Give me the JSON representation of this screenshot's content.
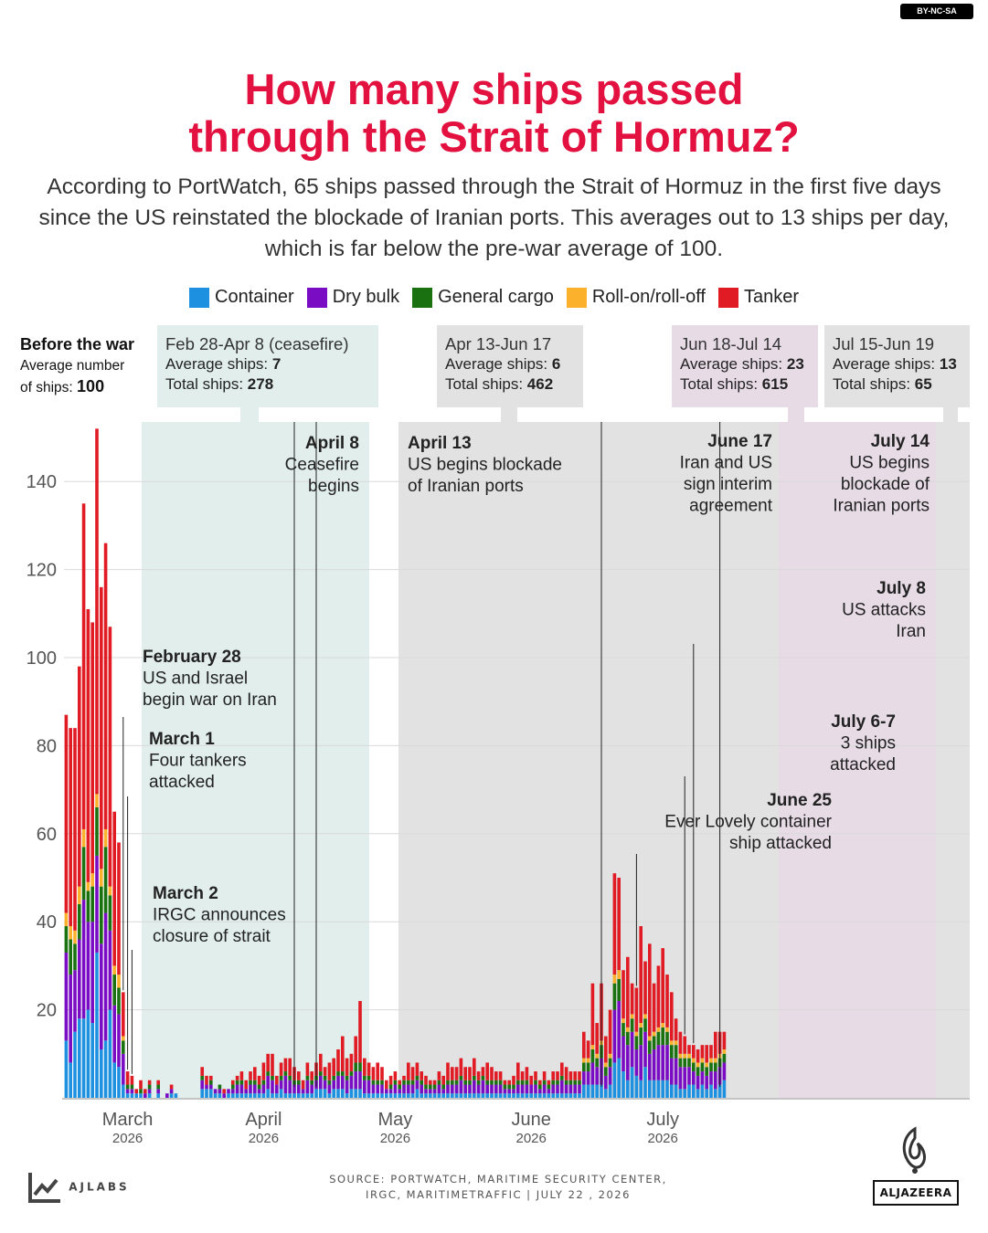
{
  "license": "BY-NC-SA",
  "title_line1": "How many ships passed",
  "title_line2": "through the Strait of Hormuz?",
  "subtitle": "According to PortWatch, 65 ships passed through the Strait of Hormuz in the first five days since the US reinstated the blockade of Iranian ports. This averages out to 13 ships per day, which is far below the pre-war average of 100.",
  "legend": [
    {
      "label": "Container",
      "color": "#1e90e0"
    },
    {
      "label": "Dry bulk",
      "color": "#7a0cc4"
    },
    {
      "label": "General cargo",
      "color": "#19720f"
    },
    {
      "label": "Roll-on/roll-off",
      "color": "#fbb12c"
    },
    {
      "label": "Tanker",
      "color": "#e01b24"
    }
  ],
  "before_war": {
    "title": "Before the war",
    "line1": "Average number",
    "line2": "of ships:",
    "value": "100"
  },
  "periods": [
    {
      "title": "Feb 28-Apr 8 (ceasefire)",
      "avg_label": "Average ships:",
      "avg": "7",
      "total_label": "Total ships:",
      "total": "278",
      "color": "#e2eeeb"
    },
    {
      "title": "Apr 13-Jun 17",
      "avg_label": "Average ships:",
      "avg": "6",
      "total_label": "Total ships:",
      "total": "462",
      "color": "#e2e2e2"
    },
    {
      "title": "Jun 18-Jul 14",
      "avg_label": "Average ships:",
      "avg": "23",
      "total_label": "Total ships:",
      "total": "615",
      "color": "#e7dbe6"
    },
    {
      "title": "Jul 15-Jun 19",
      "avg_label": "Average ships:",
      "avg": "13",
      "total_label": "Total ships:",
      "total": "65",
      "color": "#e2e2e2"
    }
  ],
  "annotations": [
    {
      "head": "February 28",
      "lines": [
        "US and Israel",
        "begin war on Iran"
      ]
    },
    {
      "head": "March 1",
      "lines": [
        "Four tankers",
        "attacked"
      ]
    },
    {
      "head": "March 2",
      "lines": [
        "IRGC announces",
        "closure of strait"
      ]
    },
    {
      "head": "April 8",
      "lines": [
        "Ceasefire",
        "begins"
      ]
    },
    {
      "head": "April 13",
      "lines": [
        "US begins blockade",
        "of Iranian ports"
      ]
    },
    {
      "head": "June 17",
      "lines": [
        "Iran and US",
        "sign interim",
        "agreement"
      ]
    },
    {
      "head": "June 25",
      "lines": [
        "Ever Lovely container",
        "ship attacked"
      ]
    },
    {
      "head": "July 6-7",
      "lines": [
        "3 ships",
        "attacked"
      ]
    },
    {
      "head": "July 8",
      "lines": [
        "US attacks",
        "Iran"
      ]
    },
    {
      "head": "July 14",
      "lines": [
        "US begins",
        "blockade of",
        "Iranian ports"
      ]
    }
  ],
  "source": "SOURCE:  PORTWATCH, MARITIME SECURITY CENTER,",
  "source2": "IRGC, MARITIMETRAFFIC  |  JULY 22 , 2026",
  "brand_left": "AJLABS",
  "brand_right": "ALJAZEERA",
  "chart_data": {
    "type": "bar",
    "stacked": true,
    "x_start": "2026-02-15",
    "x_ticks": [
      {
        "label": "March",
        "year": "2026",
        "date": "2026-03-01"
      },
      {
        "label": "April",
        "year": "2026",
        "date": "2026-04-01"
      },
      {
        "label": "May",
        "year": "2026",
        "date": "2026-05-01"
      },
      {
        "label": "June",
        "year": "2026",
        "date": "2026-06-01"
      },
      {
        "label": "July",
        "year": "2026",
        "date": "2026-07-01"
      }
    ],
    "ylim": [
      0,
      153
    ],
    "yticks": [
      20,
      40,
      60,
      80,
      100,
      120,
      140
    ],
    "grid": true,
    "series_colors": [
      "#1e90e0",
      "#7a0cc4",
      "#19720f",
      "#fbb12c",
      "#e01b24"
    ],
    "series_names": [
      "Container",
      "Dry bulk",
      "General cargo",
      "Roll-on/roll-off",
      "Tanker"
    ],
    "days": [
      [
        13,
        20,
        6,
        3,
        45
      ],
      [
        8,
        20,
        8,
        3,
        45
      ],
      [
        15,
        14,
        6,
        3,
        46
      ],
      [
        18,
        18,
        8,
        4,
        50
      ],
      [
        18,
        27,
        12,
        4,
        74
      ],
      [
        20,
        20,
        7,
        2,
        62
      ],
      [
        17,
        23,
        8,
        3,
        57
      ],
      [
        33,
        22,
        11,
        3,
        83
      ],
      [
        11,
        24,
        13,
        4,
        64
      ],
      [
        13,
        29,
        15,
        4,
        65
      ],
      [
        20,
        18,
        8,
        2,
        59
      ],
      [
        8,
        13,
        7,
        2,
        35
      ],
      [
        7,
        12,
        6,
        3,
        30
      ],
      [
        3,
        7,
        3,
        1,
        10
      ],
      [
        1,
        1,
        1,
        0,
        3
      ],
      [
        1,
        1,
        1,
        0,
        2
      ],
      [
        1,
        0,
        0,
        0,
        1
      ],
      [
        1,
        0,
        1,
        0,
        2
      ],
      [
        0,
        1,
        0,
        0,
        1
      ],
      [
        1,
        1,
        1,
        0,
        1
      ],
      [
        0,
        0,
        0,
        0,
        0
      ],
      [
        1,
        1,
        1,
        0,
        1
      ],
      [
        0,
        0,
        0,
        0,
        0
      ],
      [
        0,
        1,
        0,
        0,
        0
      ],
      [
        1,
        1,
        0,
        0,
        1
      ],
      [
        1,
        0,
        0,
        0,
        0
      ],
      [
        0,
        0,
        0,
        0,
        0
      ],
      [
        0,
        0,
        0,
        0,
        0
      ],
      [
        0,
        0,
        0,
        0,
        0
      ],
      [
        0,
        0,
        0,
        0,
        0
      ],
      [
        0,
        0,
        0,
        0,
        0
      ],
      [
        2,
        2,
        1,
        0,
        2
      ],
      [
        2,
        1,
        0,
        0,
        2
      ],
      [
        2,
        1,
        1,
        0,
        1
      ],
      [
        1,
        1,
        0,
        0,
        0
      ],
      [
        1,
        1,
        1,
        0,
        0
      ],
      [
        0,
        1,
        0,
        0,
        1
      ],
      [
        1,
        1,
        0,
        0,
        0
      ],
      [
        1,
        1,
        1,
        0,
        1
      ],
      [
        1,
        2,
        1,
        0,
        1
      ],
      [
        1,
        2,
        1,
        0,
        2
      ],
      [
        1,
        1,
        0,
        0,
        2
      ],
      [
        1,
        2,
        1,
        0,
        2
      ],
      [
        1,
        2,
        1,
        0,
        3
      ],
      [
        1,
        1,
        1,
        0,
        2
      ],
      [
        1,
        2,
        1,
        0,
        4
      ],
      [
        2,
        3,
        1,
        0,
        4
      ],
      [
        1,
        3,
        1,
        0,
        5
      ],
      [
        1,
        2,
        0,
        0,
        2
      ],
      [
        2,
        2,
        1,
        0,
        3
      ],
      [
        1,
        4,
        1,
        0,
        3
      ],
      [
        1,
        3,
        1,
        0,
        4
      ],
      [
        1,
        2,
        1,
        0,
        3
      ],
      [
        1,
        2,
        1,
        0,
        2
      ],
      [
        1,
        1,
        0,
        0,
        2
      ],
      [
        1,
        3,
        1,
        0,
        3
      ],
      [
        1,
        2,
        1,
        0,
        2
      ],
      [
        2,
        2,
        1,
        0,
        3
      ],
      [
        2,
        3,
        1,
        0,
        4
      ],
      [
        2,
        2,
        1,
        0,
        2
      ],
      [
        1,
        2,
        1,
        0,
        4
      ],
      [
        2,
        2,
        1,
        0,
        4
      ],
      [
        2,
        3,
        1,
        0,
        5
      ],
      [
        2,
        3,
        1,
        0,
        8
      ],
      [
        1,
        3,
        1,
        0,
        4
      ],
      [
        2,
        3,
        1,
        0,
        4
      ],
      [
        2,
        4,
        2,
        0,
        6
      ],
      [
        2,
        4,
        2,
        0,
        14
      ],
      [
        1,
        3,
        1,
        0,
        4
      ],
      [
        1,
        3,
        1,
        0,
        3
      ],
      [
        1,
        2,
        1,
        0,
        3
      ],
      [
        1,
        2,
        1,
        0,
        4
      ],
      [
        1,
        2,
        1,
        0,
        3
      ],
      [
        1,
        1,
        0,
        0,
        2
      ],
      [
        1,
        1,
        1,
        0,
        2
      ],
      [
        1,
        2,
        1,
        0,
        2
      ],
      [
        1,
        1,
        1,
        0,
        1
      ],
      [
        1,
        2,
        1,
        0,
        1
      ],
      [
        1,
        2,
        1,
        0,
        4
      ],
      [
        1,
        2,
        1,
        0,
        3
      ],
      [
        2,
        2,
        1,
        0,
        3
      ],
      [
        1,
        2,
        1,
        0,
        2
      ],
      [
        1,
        1,
        1,
        0,
        2
      ],
      [
        1,
        1,
        1,
        0,
        1
      ],
      [
        1,
        1,
        1,
        0,
        1
      ],
      [
        1,
        2,
        1,
        0,
        2
      ],
      [
        1,
        1,
        1,
        0,
        2
      ],
      [
        1,
        2,
        1,
        0,
        4
      ],
      [
        1,
        2,
        1,
        0,
        3
      ],
      [
        1,
        2,
        1,
        0,
        3
      ],
      [
        1,
        3,
        1,
        0,
        4
      ],
      [
        1,
        2,
        1,
        0,
        3
      ],
      [
        1,
        2,
        1,
        0,
        3
      ],
      [
        1,
        3,
        1,
        0,
        4
      ],
      [
        1,
        2,
        1,
        0,
        2
      ],
      [
        1,
        3,
        1,
        0,
        2
      ],
      [
        1,
        2,
        1,
        0,
        4
      ],
      [
        1,
        2,
        1,
        0,
        3
      ],
      [
        1,
        2,
        1,
        0,
        2
      ],
      [
        1,
        2,
        1,
        0,
        2
      ],
      [
        1,
        1,
        1,
        0,
        1
      ],
      [
        1,
        1,
        1,
        0,
        1
      ],
      [
        1,
        1,
        1,
        0,
        2
      ],
      [
        1,
        2,
        1,
        0,
        4
      ],
      [
        1,
        2,
        1,
        0,
        2
      ],
      [
        1,
        2,
        1,
        0,
        3
      ],
      [
        1,
        2,
        0,
        0,
        2
      ],
      [
        1,
        2,
        1,
        0,
        2
      ],
      [
        1,
        1,
        1,
        0,
        1
      ],
      [
        1,
        2,
        1,
        0,
        2
      ],
      [
        1,
        1,
        1,
        0,
        1
      ],
      [
        1,
        2,
        1,
        0,
        2
      ],
      [
        1,
        2,
        1,
        0,
        2
      ],
      [
        1,
        3,
        1,
        0,
        3
      ],
      [
        1,
        2,
        1,
        0,
        3
      ],
      [
        1,
        2,
        1,
        0,
        2
      ],
      [
        1,
        2,
        1,
        0,
        2
      ],
      [
        1,
        2,
        1,
        0,
        2
      ],
      [
        3,
        3,
        2,
        1,
        6
      ],
      [
        3,
        3,
        2,
        1,
        4
      ],
      [
        3,
        5,
        3,
        1,
        14
      ],
      [
        3,
        4,
        2,
        1,
        7
      ],
      [
        3,
        6,
        3,
        1,
        13
      ],
      [
        2,
        3,
        2,
        1,
        6
      ],
      [
        3,
        4,
        2,
        1,
        10
      ],
      [
        8,
        12,
        6,
        2,
        23
      ],
      [
        9,
        13,
        5,
        2,
        21
      ],
      [
        6,
        8,
        3,
        1,
        11
      ],
      [
        4,
        8,
        3,
        1,
        16
      ],
      [
        7,
        8,
        3,
        1,
        7
      ],
      [
        5,
        6,
        3,
        1,
        10
      ],
      [
        4,
        8,
        4,
        1,
        22
      ],
      [
        7,
        8,
        3,
        1,
        12
      ],
      [
        4,
        6,
        3,
        1,
        21
      ],
      [
        4,
        7,
        3,
        1,
        11
      ],
      [
        4,
        8,
        3,
        1,
        14
      ],
      [
        4,
        8,
        4,
        1,
        17
      ],
      [
        4,
        8,
        3,
        1,
        12
      ],
      [
        3,
        6,
        3,
        1,
        11
      ],
      [
        3,
        6,
        3,
        1,
        5
      ],
      [
        2,
        5,
        2,
        1,
        5
      ],
      [
        2,
        5,
        2,
        1,
        4
      ],
      [
        3,
        4,
        2,
        1,
        2
      ],
      [
        3,
        3,
        2,
        1,
        3
      ],
      [
        2,
        3,
        2,
        1,
        3
      ],
      [
        3,
        3,
        2,
        1,
        3
      ],
      [
        2,
        3,
        2,
        1,
        4
      ],
      [
        3,
        3,
        2,
        1,
        3
      ],
      [
        2,
        4,
        2,
        1,
        6
      ],
      [
        3,
        4,
        2,
        1,
        5
      ],
      [
        4,
        4,
        2,
        1,
        4
      ]
    ]
  }
}
